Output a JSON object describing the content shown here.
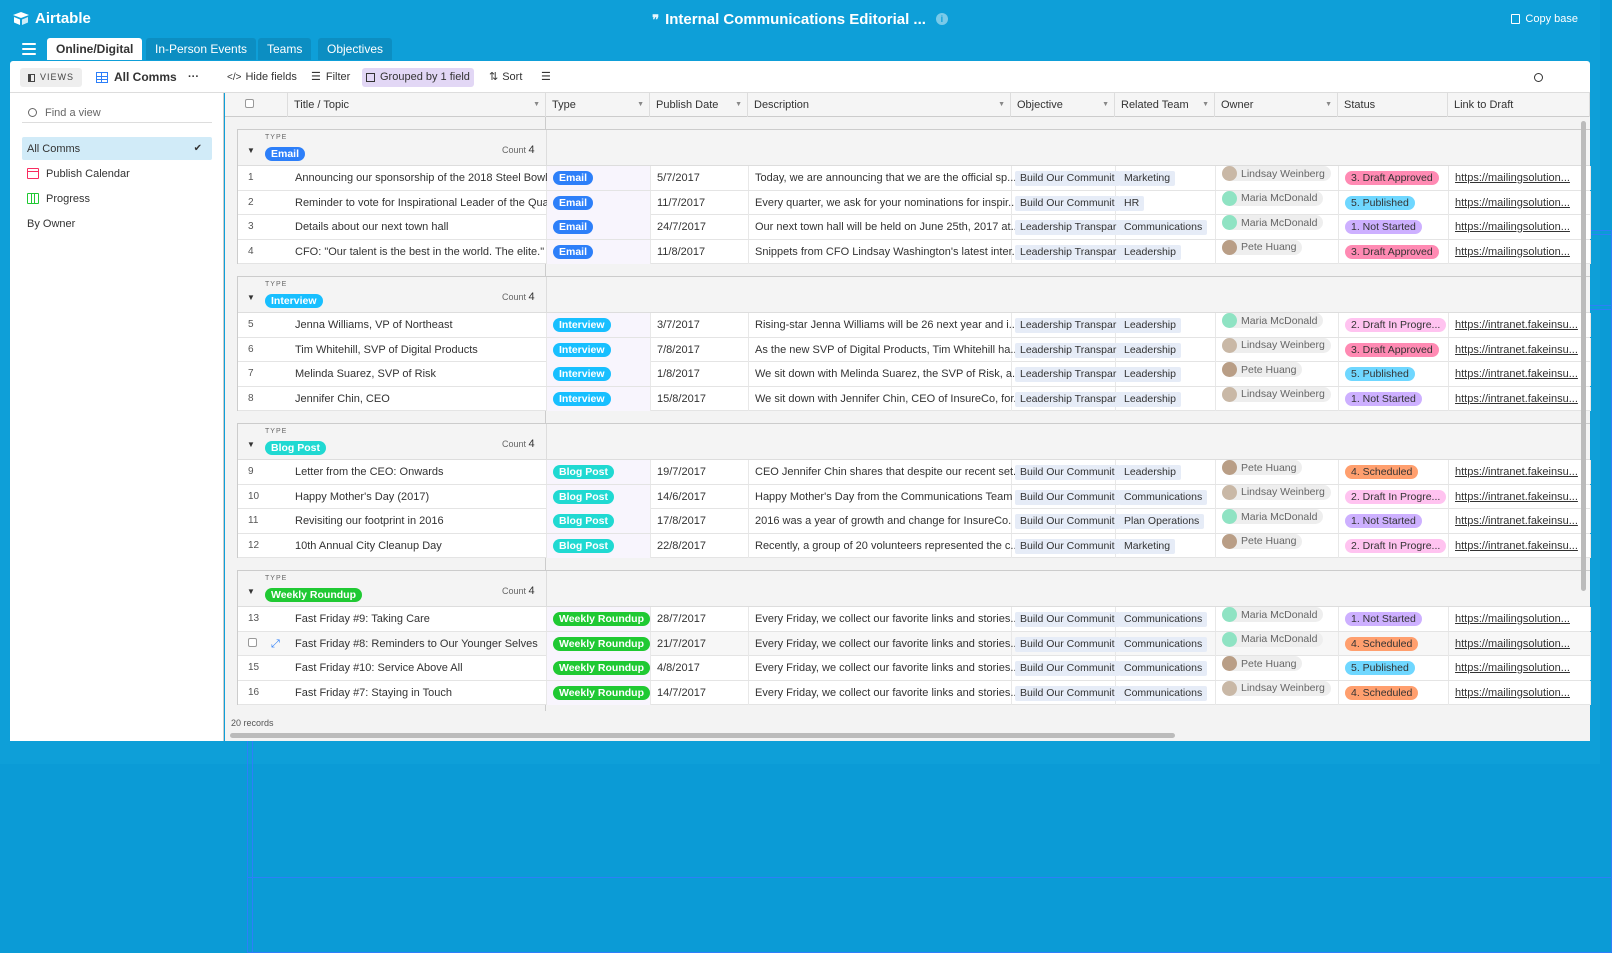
{
  "app": {
    "name": "Airtable",
    "base_title": "Internal Communications Editorial ...",
    "copy_base": "Copy base"
  },
  "tabs": [
    "Online/Digital",
    "In-Person Events",
    "Teams",
    "Objectives"
  ],
  "toolbar": {
    "views": "VIEWS",
    "view_name": "All Comms",
    "more": "···",
    "hide_fields": "Hide fields",
    "filter": "Filter",
    "grouped": "Grouped by 1 field",
    "sort": "Sort"
  },
  "sidebar": {
    "find_placeholder": "Find a view",
    "items": [
      {
        "label": "All Comms",
        "icon": "grid-icon",
        "selected": true
      },
      {
        "label": "Publish Calendar",
        "icon": "calendar-icon"
      },
      {
        "label": "Progress",
        "icon": "kanban-icon"
      },
      {
        "label": "By Owner",
        "icon": "grid-icon"
      }
    ]
  },
  "columns": [
    "Title / Topic",
    "Type",
    "Publish Date",
    "Description",
    "Objective",
    "Related Team",
    "Owner",
    "Status",
    "Link to Draft"
  ],
  "group_label": "TYPE",
  "count_label": "Count",
  "groups": [
    {
      "name": "Email",
      "color": "#2d7ff9",
      "count": "4",
      "rows": [
        {
          "n": "1",
          "title": "Announcing our sponsorship of the 2018 Steel Bowl",
          "date": "5/7/2017",
          "desc": "Today, we are announcing that we are the official sp...",
          "obj": "Build Our Communit",
          "team": "Marketing",
          "owner": "Lindsay Weinberg",
          "status": "3. Draft Approved",
          "link": "https://mailingsolution..."
        },
        {
          "n": "2",
          "title": "Reminder to vote for Inspirational Leader of the Qua...",
          "date": "11/7/2017",
          "desc": "Every quarter, we ask for your nominations for inspir...",
          "obj": "Build Our Communit",
          "team": "HR",
          "owner": "Maria McDonald",
          "status": "5. Published",
          "link": "https://mailingsolution..."
        },
        {
          "n": "3",
          "title": "Details about our next town hall",
          "date": "24/7/2017",
          "desc": "Our next town hall will be held on June 25th, 2017 at...",
          "obj": "Leadership Transpar",
          "team": "Communications",
          "owner": "Maria McDonald",
          "status": "1. Not Started",
          "link": "https://mailingsolution..."
        },
        {
          "n": "4",
          "title": "CFO: \"Our talent is the best in the world. The elite.\"",
          "date": "11/8/2017",
          "desc": "Snippets from CFO Lindsay Washington's latest inter...",
          "obj": "Leadership Transpar",
          "team": "Leadership",
          "owner": "Pete Huang",
          "status": "3. Draft Approved",
          "link": "https://mailingsolution..."
        }
      ]
    },
    {
      "name": "Interview",
      "color": "#18bfff",
      "count": "4",
      "rows": [
        {
          "n": "5",
          "title": "Jenna Williams, VP of Northeast",
          "date": "3/7/2017",
          "desc": "Rising-star Jenna Williams will be 26 next year and i...",
          "obj": "Leadership Transpar",
          "team": "Leadership",
          "owner": "Maria McDonald",
          "status": "2. Draft In Progre...",
          "link": "https://intranet.fakeinsu..."
        },
        {
          "n": "6",
          "title": "Tim Whitehill, SVP of Digital Products",
          "date": "7/8/2017",
          "desc": "As the new SVP of Digital Products, Tim Whitehill ha...",
          "obj": "Leadership Transpar",
          "team": "Leadership",
          "owner": "Lindsay Weinberg",
          "status": "3. Draft Approved",
          "link": "https://intranet.fakeinsu..."
        },
        {
          "n": "7",
          "title": "Melinda Suarez, SVP of Risk",
          "date": "1/8/2017",
          "desc": "We sit down with Melinda Suarez, the SVP of Risk, a...",
          "obj": "Leadership Transpar",
          "team": "Leadership",
          "owner": "Pete Huang",
          "status": "5. Published",
          "link": "https://intranet.fakeinsu..."
        },
        {
          "n": "8",
          "title": "Jennifer Chin, CEO",
          "date": "15/8/2017",
          "desc": "We sit down with Jennifer Chin, CEO of InsureCo, for...",
          "obj": "Leadership Transpar",
          "team": "Leadership",
          "owner": "Lindsay Weinberg",
          "status": "1. Not Started",
          "link": "https://intranet.fakeinsu..."
        }
      ]
    },
    {
      "name": "Blog Post",
      "color": "#20d9d2",
      "count": "4",
      "rows": [
        {
          "n": "9",
          "title": "Letter from the CEO: Onwards",
          "date": "19/7/2017",
          "desc": "CEO Jennifer Chin shares that despite our recent set...",
          "obj": "Build Our Communit",
          "team": "Leadership",
          "owner": "Pete Huang",
          "status": "4. Scheduled",
          "link": "https://intranet.fakeinsu..."
        },
        {
          "n": "10",
          "title": "Happy Mother's Day (2017)",
          "date": "14/6/2017",
          "desc": "Happy Mother's Day from the Communications Team",
          "obj": "Build Our Communit",
          "team": "Communications",
          "owner": "Lindsay Weinberg",
          "status": "2. Draft In Progre...",
          "link": "https://intranet.fakeinsu..."
        },
        {
          "n": "11",
          "title": "Revisiting our footprint in 2016",
          "date": "17/8/2017",
          "desc": "2016 was a year of growth and change for InsureCo. ...",
          "obj": "Build Our Communit",
          "team": "Plan Operations",
          "owner": "Maria McDonald",
          "status": "1. Not Started",
          "link": "https://intranet.fakeinsu..."
        },
        {
          "n": "12",
          "title": "10th Annual City Cleanup Day",
          "date": "22/8/2017",
          "desc": "Recently, a group of 20 volunteers represented the c...",
          "obj": "Build Our Communit",
          "team": "Marketing",
          "owner": "Pete Huang",
          "status": "2. Draft In Progre...",
          "link": "https://intranet.fakeinsu..."
        }
      ]
    },
    {
      "name": "Weekly Roundup",
      "color": "#20c933",
      "count": "4",
      "rows": [
        {
          "n": "13",
          "title": "Fast Friday #9: Taking Care",
          "date": "28/7/2017",
          "desc": "Every Friday, we collect our favorite links and stories...",
          "obj": "Build Our Communit",
          "team": "Communications",
          "owner": "Maria McDonald",
          "status": "1. Not Started",
          "link": "https://mailingsolution..."
        },
        {
          "n": "",
          "title": "Fast Friday #8: Reminders to Our Younger Selves",
          "date": "21/7/2017",
          "desc": "Every Friday, we collect our favorite links and stories...",
          "obj": "Build Our Communit",
          "team": "Communications",
          "owner": "Maria McDonald",
          "status": "4. Scheduled",
          "link": "https://mailingsolution..."
        },
        {
          "n": "15",
          "title": "Fast Friday #10: Service Above All",
          "date": "4/8/2017",
          "desc": "Every Friday, we collect our favorite links and stories...",
          "obj": "Build Our Communit",
          "team": "Communications",
          "owner": "Pete Huang",
          "status": "5. Published",
          "link": "https://mailingsolution..."
        },
        {
          "n": "16",
          "title": "Fast Friday #7: Staying in Touch",
          "date": "14/7/2017",
          "desc": "Every Friday, we collect our favorite links and stories...",
          "obj": "Build Our Communit",
          "team": "Communications",
          "owner": "Lindsay Weinberg",
          "status": "4. Scheduled",
          "link": "https://mailingsolution..."
        }
      ]
    }
  ],
  "status_colors": {
    "1. Not Started": "#cdb0ff",
    "2. Draft In Progre...": "#ffc3f0",
    "3. Draft Approved": "#ff8ab3",
    "4. Scheduled": "#ff9f6e",
    "5. Published": "#6fd7ff"
  },
  "owner_colors": {
    "Lindsay Weinberg": "#c9b8a6",
    "Maria McDonald": "#8fe3c3",
    "Pete Huang": "#b99e86"
  },
  "footer": {
    "records": "20 records"
  }
}
